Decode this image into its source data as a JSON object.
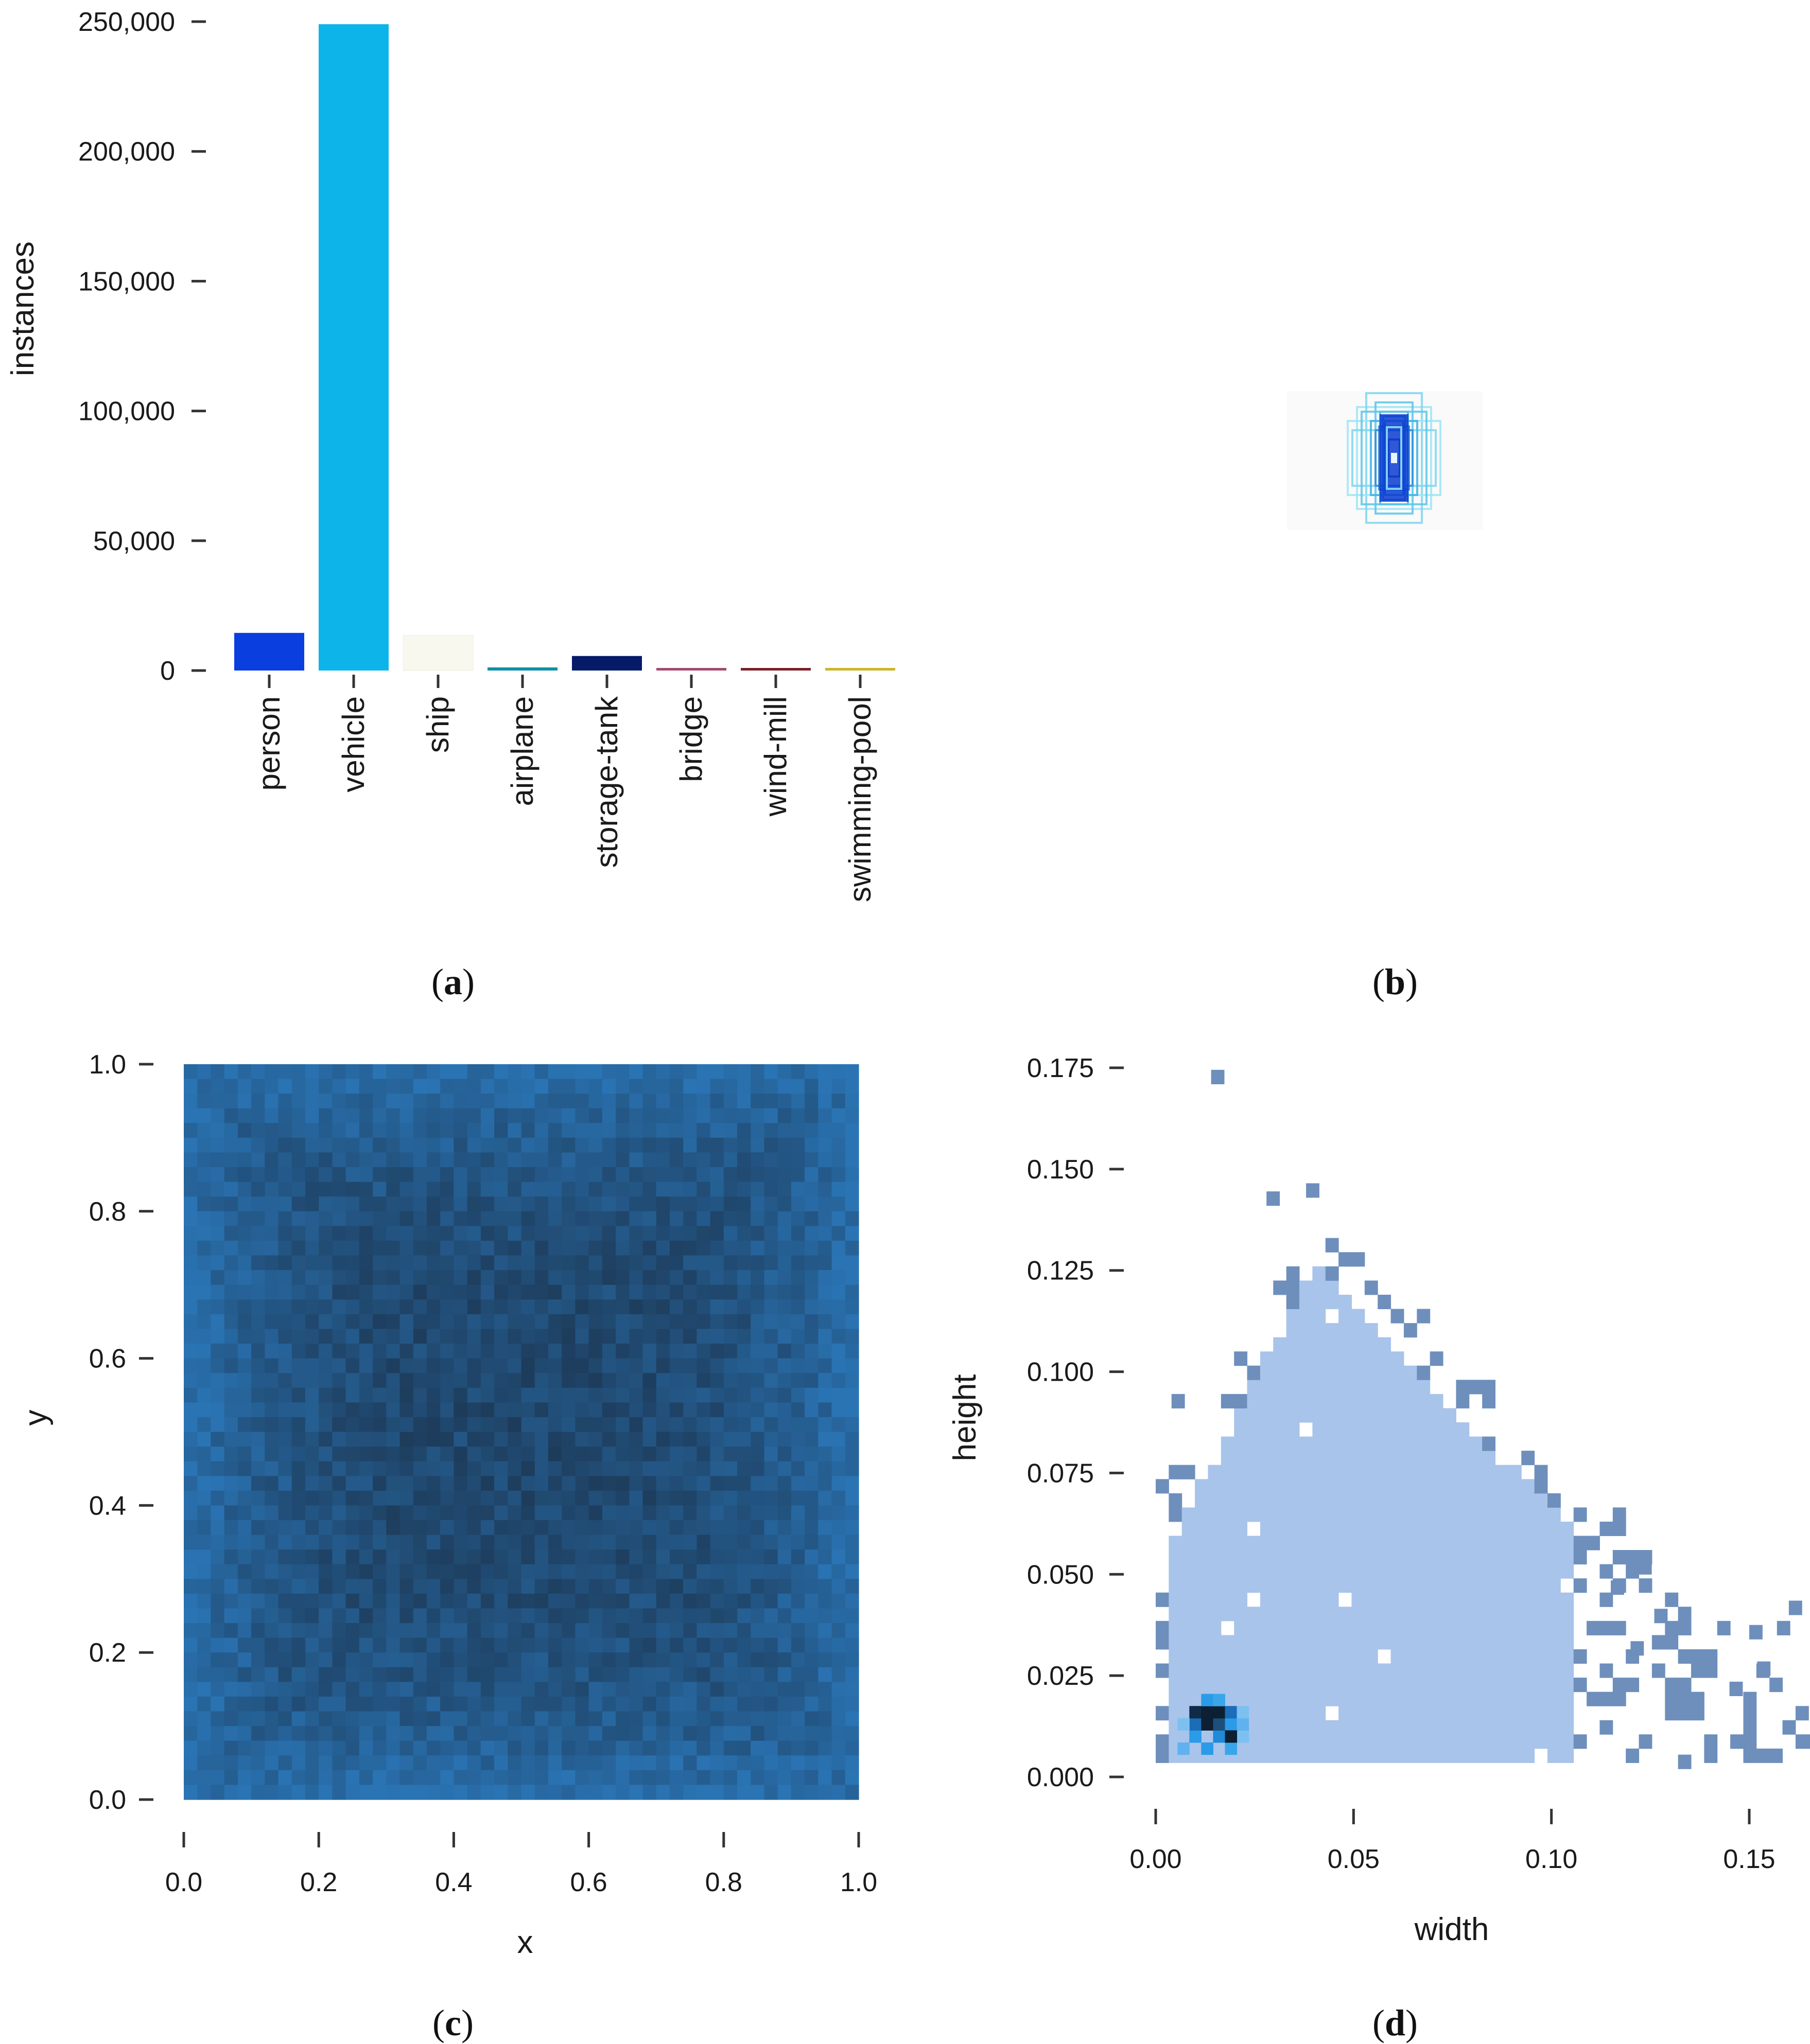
{
  "panels": {
    "a": {
      "label": "a"
    },
    "b": {
      "label": "b"
    },
    "c": {
      "label": "c"
    },
    "d": {
      "label": "d"
    }
  },
  "colors": {
    "person": "#0a3ede",
    "vehicle": "#0db4e9",
    "ship": "#f8f8ee",
    "airplane": "#0e8fa8",
    "storage-tank": "#061a6a",
    "bridge": "#a24a6e",
    "wind-mill": "#7a1f2a",
    "swimming-pool": "#c8b628",
    "heat_dark": "#1d3a58",
    "heat_light": "#2a74b4",
    "hist_light": "#a9c4ea",
    "hist_mid": "#6e8fbc",
    "hist_peak": "#2a9be8",
    "hist_dark": "#0c1f33"
  },
  "chart_data": [
    {
      "panel": "a",
      "type": "bar",
      "title": "",
      "xlabel": "",
      "ylabel": "instances",
      "ylim": [
        0,
        250000
      ],
      "yticks": [
        "0",
        "50,000",
        "100,000",
        "150,000",
        "200,000",
        "250,000"
      ],
      "ytick_values": [
        0,
        50000,
        100000,
        150000,
        200000,
        250000
      ],
      "categories": [
        "person",
        "vehicle",
        "ship",
        "airplane",
        "storage-tank",
        "bridge",
        "wind-mill",
        "swimming-pool"
      ],
      "values": [
        14500,
        249000,
        13500,
        1200,
        5600,
        500,
        500,
        600
      ],
      "grid": false,
      "legend": "none"
    },
    {
      "panel": "b",
      "type": "other",
      "description_of_marks": "overlaid centred bounding boxes",
      "boxes_wh": [
        [
          0.04,
          0.055
        ],
        [
          0.03,
          0.07
        ],
        [
          0.02,
          0.06
        ],
        [
          0.015,
          0.05
        ],
        [
          0.012,
          0.045
        ],
        [
          0.01,
          0.04
        ],
        [
          0.008,
          0.03
        ],
        [
          0.006,
          0.02
        ],
        [
          0.004,
          0.01
        ],
        [
          0.05,
          0.04
        ],
        [
          0.045,
          0.03
        ],
        [
          0.035,
          0.05
        ],
        [
          0.025,
          0.04
        ],
        [
          0.02,
          0.03
        ],
        [
          0.016,
          0.034
        ]
      ]
    },
    {
      "panel": "c",
      "type": "heatmap",
      "xlabel": "x",
      "ylabel": "y",
      "xlim": [
        0,
        1
      ],
      "ylim": [
        0,
        1
      ],
      "xticks": [
        "0.0",
        "0.2",
        "0.4",
        "0.6",
        "0.8",
        "1.0"
      ],
      "yticks": [
        "0.0",
        "0.2",
        "0.4",
        "0.6",
        "0.8",
        "1.0"
      ],
      "tick_values": [
        0,
        0.2,
        0.4,
        0.6,
        0.8,
        1.0
      ],
      "bins": 50,
      "grid": false
    },
    {
      "panel": "d",
      "type": "heatmap",
      "xlabel": "width",
      "ylabel": "height",
      "xlim": [
        0,
        0.165
      ],
      "ylim": [
        0,
        0.18
      ],
      "xticks": [
        "0.00",
        "0.05",
        "0.10",
        "0.15"
      ],
      "xtick_values": [
        0,
        0.05,
        0.1,
        0.15
      ],
      "yticks": [
        "0.000",
        "0.025",
        "0.050",
        "0.075",
        "0.100",
        "0.125",
        "0.150",
        "0.175"
      ],
      "ytick_values": [
        0,
        0.025,
        0.05,
        0.075,
        0.1,
        0.125,
        0.15,
        0.175
      ],
      "peak": {
        "width": 0.016,
        "height": 0.013
      },
      "grid": false
    }
  ]
}
